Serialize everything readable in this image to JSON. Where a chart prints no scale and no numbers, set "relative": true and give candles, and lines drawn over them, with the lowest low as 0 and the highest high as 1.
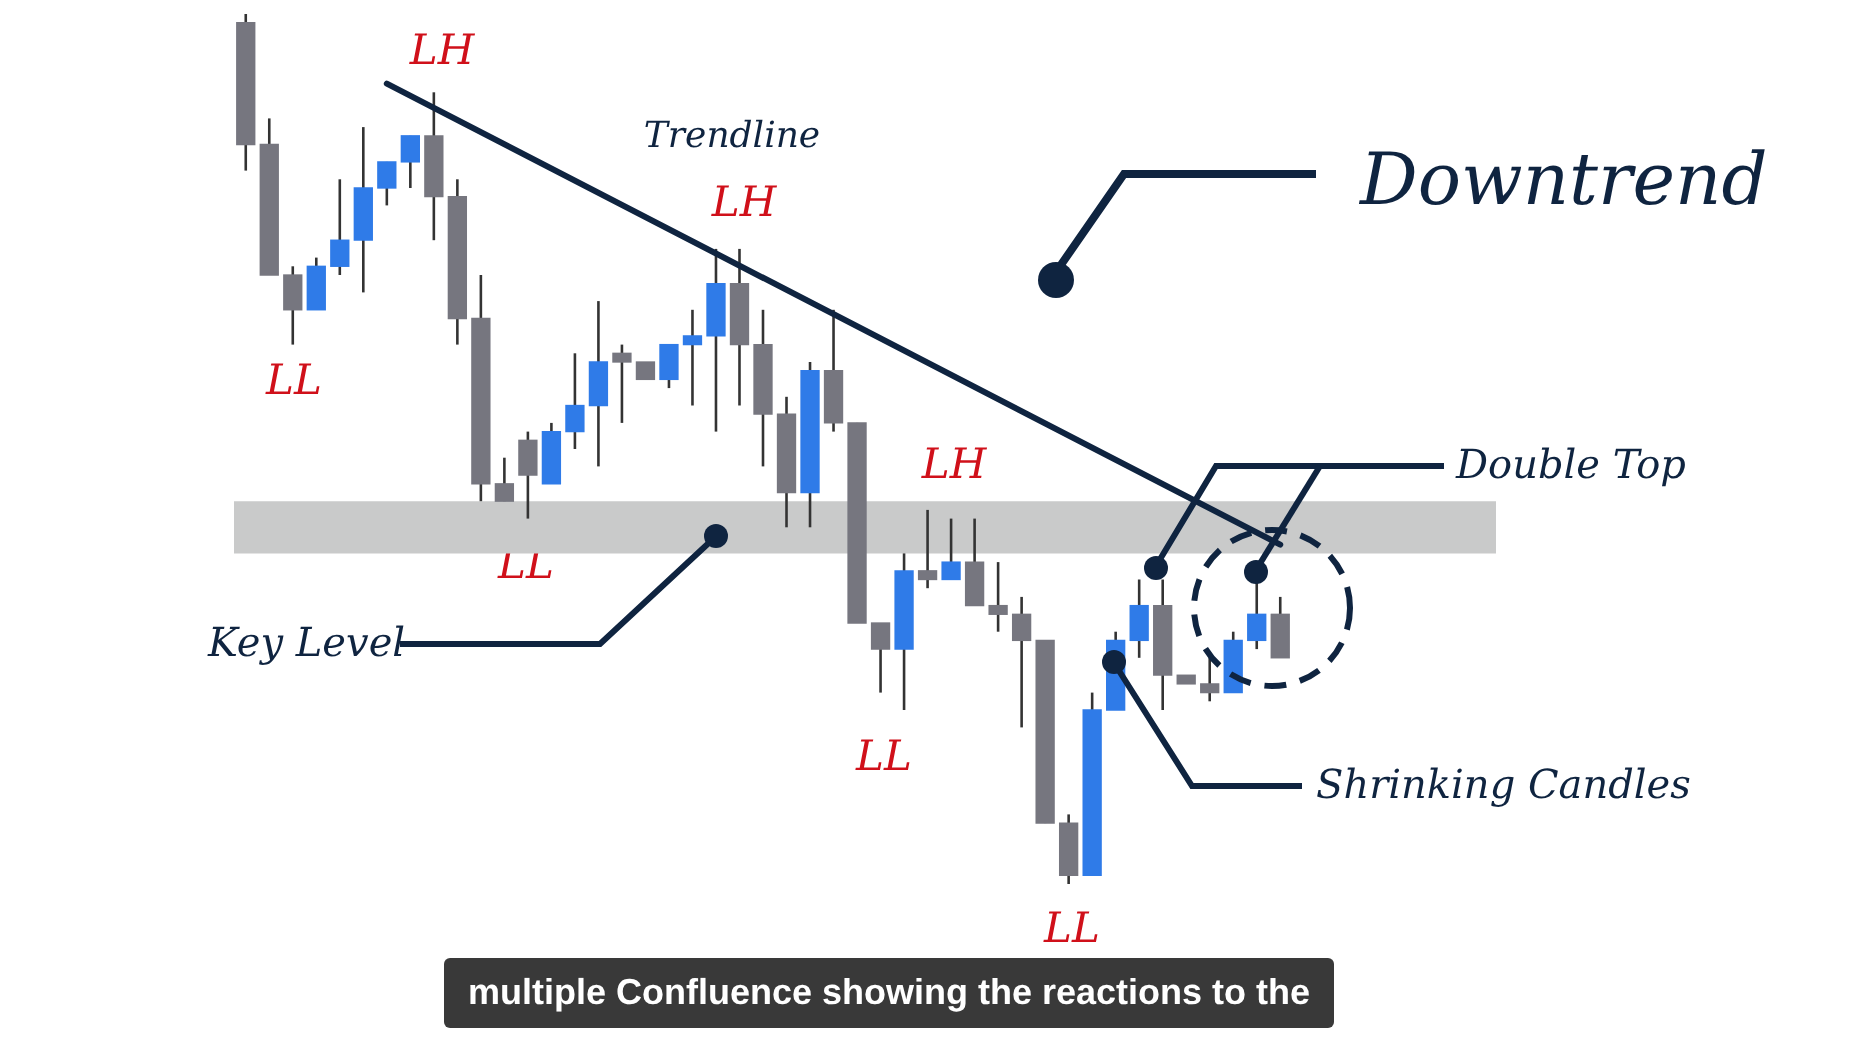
{
  "chart_data": {
    "type": "candlestick",
    "relative": true,
    "categories": [
      null,
      null,
      null,
      null,
      null,
      null,
      null,
      null,
      null,
      null,
      null,
      null,
      null,
      null,
      null,
      null,
      null,
      null,
      null,
      null,
      null,
      null,
      null,
      null,
      null,
      null,
      null,
      null,
      null,
      null,
      null,
      null,
      null,
      null,
      null,
      null,
      null,
      null,
      null,
      null,
      null,
      null,
      null,
      null,
      null
    ],
    "ohlc": [
      [
        0.99,
        1,
        0.82,
        0.85
      ],
      [
        0.85,
        0.88,
        0.7,
        0.7
      ],
      [
        0.7,
        0.71,
        0.62,
        0.66
      ],
      [
        0.66,
        0.72,
        0.66,
        0.71
      ],
      [
        0.71,
        0.81,
        0.7,
        0.74
      ],
      [
        0.74,
        0.87,
        0.68,
        0.8
      ],
      [
        0.8,
        0.83,
        0.78,
        0.83
      ],
      [
        0.83,
        0.86,
        0.8,
        0.86
      ],
      [
        0.86,
        0.91,
        0.74,
        0.79
      ],
      [
        0.79,
        0.81,
        0.62,
        0.65
      ],
      [
        0.65,
        0.7,
        0.44,
        0.46
      ],
      [
        0.46,
        0.49,
        0.44,
        0.44
      ],
      [
        0.51,
        0.52,
        0.42,
        0.47
      ],
      [
        0.46,
        0.53,
        0.46,
        0.52
      ],
      [
        0.52,
        0.61,
        0.5,
        0.55
      ],
      [
        0.55,
        0.67,
        0.48,
        0.6
      ],
      [
        0.61,
        0.62,
        0.53,
        0.6
      ],
      [
        0.6,
        0.6,
        0.58,
        0.58
      ],
      [
        0.58,
        0.62,
        0.57,
        0.62
      ],
      [
        0.62,
        0.66,
        0.55,
        0.63
      ],
      [
        0.63,
        0.73,
        0.52,
        0.69
      ],
      [
        0.69,
        0.73,
        0.55,
        0.62
      ],
      [
        0.62,
        0.66,
        0.48,
        0.54
      ],
      [
        0.54,
        0.56,
        0.41,
        0.45
      ],
      [
        0.45,
        0.6,
        0.41,
        0.59
      ],
      [
        0.59,
        0.66,
        0.52,
        0.53
      ],
      [
        0.53,
        0.53,
        0.3,
        0.3
      ],
      [
        0.3,
        0.3,
        0.22,
        0.27
      ],
      [
        0.27,
        0.38,
        0.2,
        0.36
      ],
      [
        0.36,
        0.43,
        0.34,
        0.35
      ],
      [
        0.35,
        0.42,
        0.35,
        0.37
      ],
      [
        0.37,
        0.42,
        0.32,
        0.32
      ],
      [
        0.32,
        0.37,
        0.29,
        0.31
      ],
      [
        0.31,
        0.33,
        0.18,
        0.28
      ],
      [
        0.28,
        0.28,
        0.07,
        0.07
      ],
      [
        0.07,
        0.08,
        0,
        0.01
      ],
      [
        0.01,
        0.22,
        0.01,
        0.2
      ],
      [
        0.2,
        0.29,
        0.2,
        0.28
      ],
      [
        0.28,
        0.35,
        0.26,
        0.32
      ],
      [
        0.32,
        0.35,
        0.2,
        0.24
      ],
      [
        0.24,
        0.24,
        0.23,
        0.23
      ],
      [
        0.23,
        0.26,
        0.21,
        0.22
      ],
      [
        0.22,
        0.29,
        0.22,
        0.28
      ],
      [
        0.28,
        0.37,
        0.27,
        0.31
      ],
      [
        0.31,
        0.33,
        0.26,
        0.26
      ]
    ],
    "colors": [
      "#76767f",
      "#76767f",
      "#76767f",
      "#2f7be8",
      "#2f7be8",
      "#2f7be8",
      "#2f7be8",
      "#2f7be8",
      "#76767f",
      "#76767f",
      "#76767f",
      "#76767f",
      "#76767f",
      "#2f7be8",
      "#2f7be8",
      "#2f7be8",
      "#76767f",
      "#76767f",
      "#2f7be8",
      "#2f7be8",
      "#2f7be8",
      "#76767f",
      "#76767f",
      "#76767f",
      "#2f7be8",
      "#76767f",
      "#76767f",
      "#76767f",
      "#2f7be8",
      "#76767f",
      "#2f7be8",
      "#76767f",
      "#76767f",
      "#76767f",
      "#76767f",
      "#76767f",
      "#2f7be8",
      "#2f7be8",
      "#2f7be8",
      "#76767f",
      "#76767f",
      "#76767f",
      "#2f7be8",
      "#2f7be8",
      "#76767f"
    ],
    "series": [
      {
        "type": "line",
        "color": "#0f2440",
        "values": [
          null,
          null,
          null,
          null,
          null,
          null,
          0.92,
          null,
          null,
          null,
          null,
          null,
          null,
          null,
          null,
          null,
          null,
          null,
          null,
          null,
          null,
          null,
          null,
          null,
          null,
          null,
          null,
          null,
          null,
          null,
          null,
          null,
          null,
          null,
          null,
          null,
          null,
          null,
          null,
          null,
          null,
          null,
          null,
          null,
          0.39
        ]
      }
    ],
    "bands": [
      {
        "axis": "y",
        "from": 0.38,
        "to": 0.44,
        "color": "#c9caca"
      }
    ],
    "annotations": [
      "LH",
      "LL",
      "Trendline",
      "LH",
      "LL",
      "LH",
      "LL",
      "LL",
      "Downtrend",
      "Double Top",
      "Key Level",
      "Shrinking Candles",
      "multiple Confluence showing the reactions to the"
    ]
  }
}
